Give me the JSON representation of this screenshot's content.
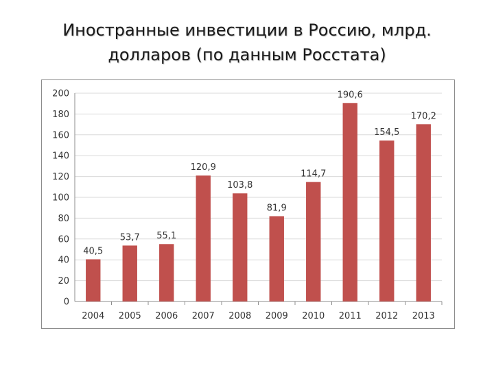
{
  "slide": {
    "title_line1": "Иностранные инвестиции в Россию, млрд.",
    "title_line2": "долларов (по данным Росстата)"
  },
  "chart_data": {
    "type": "bar",
    "categories": [
      "2004",
      "2005",
      "2006",
      "2007",
      "2008",
      "2009",
      "2010",
      "2011",
      "2012",
      "2013"
    ],
    "values": [
      40.5,
      53.7,
      55.1,
      120.9,
      103.8,
      81.9,
      114.7,
      190.6,
      154.5,
      170.2
    ],
    "data_labels": [
      "40,5",
      "53,7",
      "55,1",
      "120,9",
      "103,8",
      "81,9",
      "114,7",
      "190,6",
      "154,5",
      "170,2"
    ],
    "y_ticks": [
      0,
      20,
      40,
      60,
      80,
      100,
      120,
      140,
      160,
      180,
      200
    ],
    "ylim": [
      0,
      200
    ],
    "grid": true,
    "legend": "none",
    "bar_color": "#c0504d",
    "grid_color": "#d9d9d9"
  }
}
